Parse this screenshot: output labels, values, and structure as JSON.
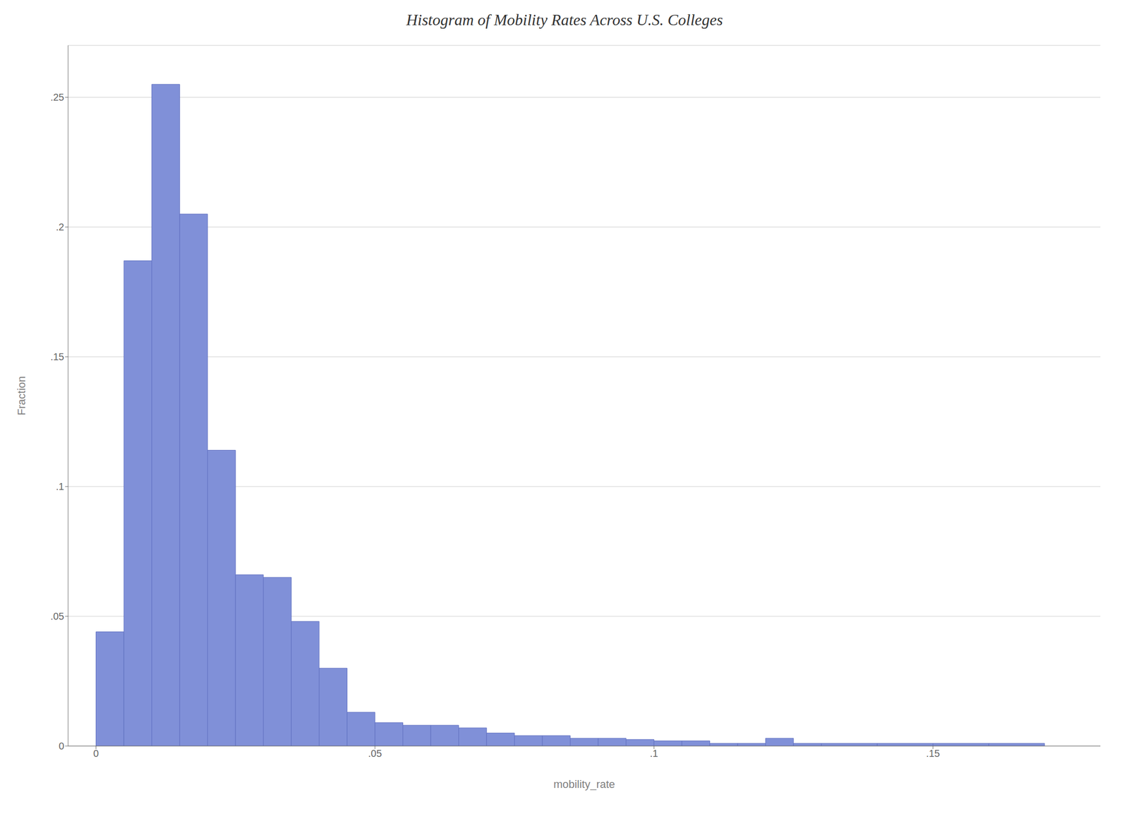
{
  "chart_data": {
    "type": "histogram",
    "title": "Histogram of Mobility Rates Across U.S. Colleges",
    "xlabel": "mobility_rate",
    "ylabel": "Fraction",
    "bins": [
      0.0,
      0.005,
      0.01,
      0.015,
      0.02,
      0.025,
      0.03,
      0.035,
      0.04,
      0.045,
      0.05,
      0.055,
      0.06,
      0.065,
      0.07,
      0.075,
      0.08,
      0.085,
      0.09,
      0.095,
      0.1,
      0.105,
      0.11,
      0.115,
      0.12,
      0.125,
      0.13,
      0.14,
      0.15,
      0.16,
      0.17,
      0.175
    ],
    "values": [
      0.044,
      0.187,
      0.255,
      0.205,
      0.114,
      0.066,
      0.065,
      0.048,
      0.03,
      0.013,
      0.009,
      0.008,
      0.008,
      0.007,
      0.005,
      0.004,
      0.004,
      0.003,
      0.003,
      0.0025,
      0.002,
      0.002,
      0.001,
      0.001,
      0.003,
      0.001,
      0.001,
      0.001,
      0.001,
      0.001,
      0.0
    ],
    "color": "#8090d8",
    "xlim": [
      -0.005,
      0.18
    ],
    "ylim": [
      0,
      0.27
    ],
    "xticks": [
      0,
      {
        "value": 0.05,
        "label": ".05"
      },
      {
        "value": 0.1,
        "label": ".1"
      },
      {
        "value": 0.15,
        "label": ".15"
      }
    ],
    "yticks": [
      0,
      {
        "value": 0.05,
        "label": ".05"
      },
      {
        "value": 0.1,
        "label": ".1"
      },
      {
        "value": 0.15,
        "label": ".15"
      },
      {
        "value": 0.2,
        "label": ".2"
      },
      {
        "value": 0.25,
        "label": ".25"
      }
    ],
    "grid": true
  }
}
